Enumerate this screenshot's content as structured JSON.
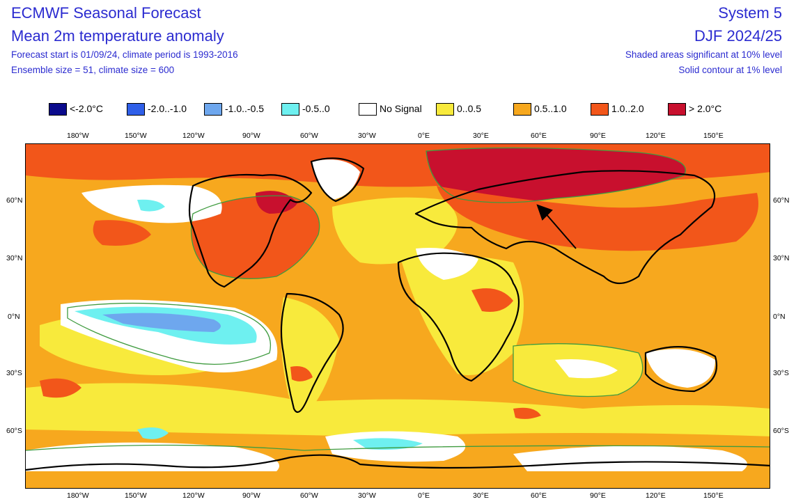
{
  "header": {
    "title": "ECMWF Seasonal Forecast",
    "subtitle": "Mean 2m temperature anomaly",
    "forecast_info": "Forecast start is 01/09/24, climate period is 1993-2016",
    "ensemble_info": "Ensemble size = 51, climate size = 600",
    "system": "System 5",
    "period": "DJF 2024/25",
    "significance_10": "Shaded areas significant at 10% level",
    "significance_1": "Solid contour at 1% level"
  },
  "legend": [
    {
      "label": "<-2.0°C",
      "color": "#0b0b8c"
    },
    {
      "label": "-2.0..-1.0",
      "color": "#2f5fe8"
    },
    {
      "label": "-1.0..-0.5",
      "color": "#6ea7ee"
    },
    {
      "label": "-0.5..0",
      "color": "#6ef0f0"
    },
    {
      "label": "No Signal",
      "color": "#ffffff"
    },
    {
      "label": "0..0.5",
      "color": "#f8ea3c"
    },
    {
      "label": "0.5..1.0",
      "color": "#f7a81e"
    },
    {
      "label": "1.0..2.0",
      "color": "#f2561a"
    },
    {
      "label": "> 2.0°C",
      "color": "#c8102e"
    }
  ],
  "axes": {
    "lon_labels": [
      "180°W",
      "150°W",
      "120°W",
      "90°W",
      "60°W",
      "30°W",
      "0°E",
      "30°E",
      "60°E",
      "90°E",
      "120°E",
      "150°E"
    ],
    "lat_labels": [
      "60°N",
      "30°N",
      "0°N",
      "30°S",
      "60°S"
    ]
  },
  "colors": {
    "text_blue": "#2b2bd0",
    "contour_green": "#3f9b3f",
    "coast": "#000000"
  }
}
